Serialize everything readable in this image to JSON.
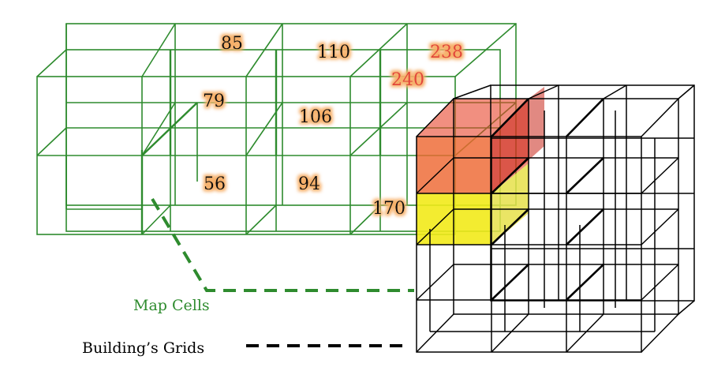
{
  "colors": {
    "map_grid": "#2e8b2e",
    "building_grid": "#000000",
    "value_glow": "#f6b06a",
    "hot_value": "#e2453a",
    "fill_red": "#e8442c",
    "fill_orange": "#f07a35",
    "fill_yellow": "#f2ea1a"
  },
  "cell_values": {
    "v85": "85",
    "v110": "110",
    "v238": "238",
    "v240": "240",
    "v79": "79",
    "v106": "106",
    "v56": "56",
    "v94": "94",
    "v170": "170"
  },
  "labels": {
    "map_cells": "Map Cells",
    "building_grids": "Building’s Grids"
  }
}
